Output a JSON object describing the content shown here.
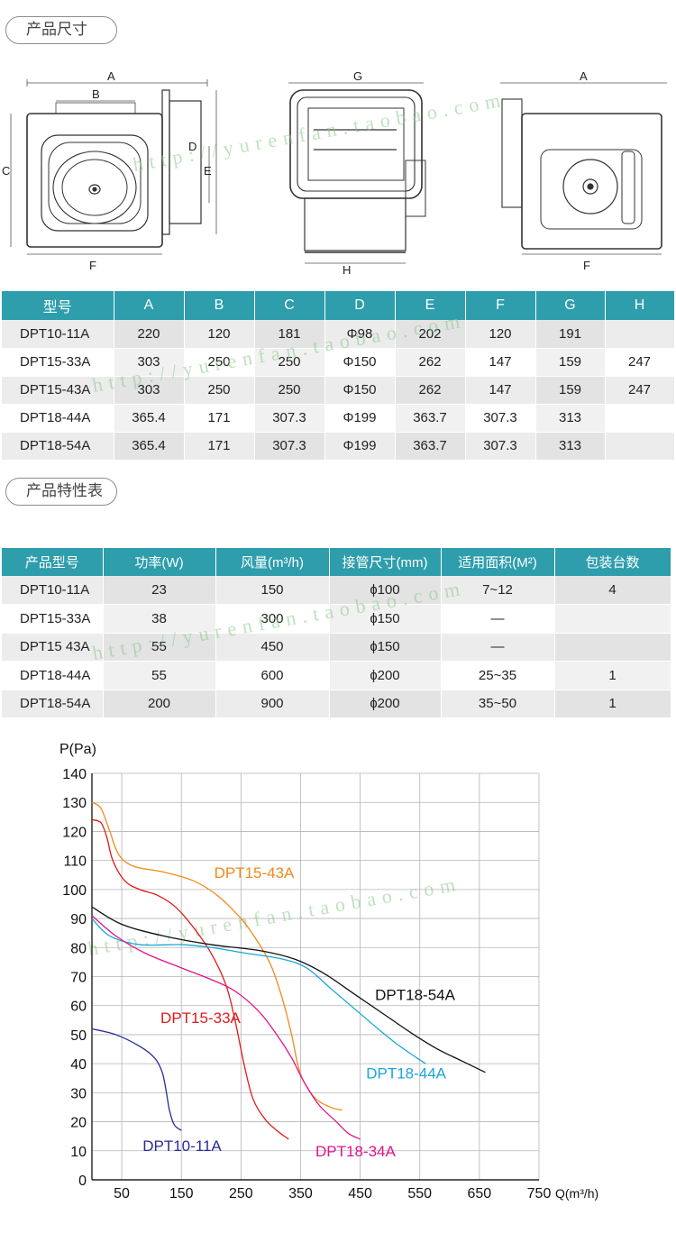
{
  "sections": {
    "size_title": "产品尺寸",
    "props_title": "产品特性表"
  },
  "diagram_labels": {
    "front": {
      "a": "A",
      "b": "B",
      "c": "C",
      "d": "D",
      "e": "E",
      "f": "F"
    },
    "side": {
      "g": "G",
      "h": "H"
    },
    "back": {
      "a": "A",
      "f": "F"
    }
  },
  "dimension_table": {
    "headers": [
      "型号",
      "A",
      "B",
      "C",
      "D",
      "E",
      "F",
      "G",
      "H"
    ],
    "rows": [
      [
        "DPT10-11A",
        "220",
        "120",
        "181",
        "Φ98",
        "202",
        "120",
        "191",
        ""
      ],
      [
        "DPT15-33A",
        "303",
        "250",
        "250",
        "Φ150",
        "262",
        "147",
        "159",
        "247"
      ],
      [
        "DPT15-43A",
        "303",
        "250",
        "250",
        "Φ150",
        "262",
        "147",
        "159",
        "247"
      ],
      [
        "DPT18-44A",
        "365.4",
        "171",
        "307.3",
        "Φ199",
        "363.7",
        "307.3",
        "313",
        ""
      ],
      [
        "DPT18-54A",
        "365.4",
        "171",
        "307.3",
        "Φ199",
        "363.7",
        "307.3",
        "313",
        ""
      ]
    ]
  },
  "property_table": {
    "headers": [
      "产品型号",
      "功率(W)",
      "风量(m³/h)",
      "接管尺寸(mm)",
      "适用面积(M²)",
      "包装台数"
    ],
    "rows": [
      [
        "DPT10-11A",
        "23",
        "150",
        "ɸ100",
        "7~12",
        "4"
      ],
      [
        "DPT15-33A",
        "38",
        "300",
        "ɸ150",
        "—",
        ""
      ],
      [
        "DPT15 43A",
        "55",
        "450",
        "ɸ150",
        "—",
        ""
      ],
      [
        "DPT18-44A",
        "55",
        "600",
        "ɸ200",
        "25~35",
        "1"
      ],
      [
        "DPT18-54A",
        "200",
        "900",
        "ɸ200",
        "35~50",
        "1"
      ]
    ]
  },
  "watermark_text": "http://yurenfan.taobao.com",
  "colors": {
    "header_teal": "#2e9dac",
    "dpt10_11a": "#2a2a9a",
    "dpt15_33a": "#e01a1a",
    "dpt15_43a": "#f08a1a",
    "dpt18_44a": "#1aa6d8",
    "dpt18_34a": "#e0158a",
    "dpt18_54a": "#111111"
  },
  "chart_data": {
    "type": "line",
    "title": "",
    "ylabel": "P(Pa)",
    "xlabel": "Q(m³/h)",
    "xlim": [
      0,
      750
    ],
    "ylim": [
      0,
      140
    ],
    "x_ticks": [
      50,
      150,
      250,
      350,
      450,
      550,
      650,
      750
    ],
    "x_tick_labels": [
      "50",
      "150",
      "250",
      "350",
      "450",
      "550",
      "650",
      "750"
    ],
    "y_ticks": [
      0,
      10,
      20,
      30,
      40,
      50,
      60,
      70,
      80,
      90,
      100,
      110,
      120,
      130,
      140
    ],
    "y_tick_labels": [
      "0",
      "10",
      "20",
      "30",
      "40",
      "50",
      "60",
      "70",
      "80",
      "90",
      "100",
      "110",
      "120",
      "130",
      "140"
    ],
    "series": [
      {
        "name": "DPT10-11A",
        "color": "#2a2a9a",
        "points": [
          [
            0,
            52
          ],
          [
            40,
            50
          ],
          [
            80,
            46
          ],
          [
            105,
            42
          ],
          [
            118,
            37
          ],
          [
            125,
            30
          ],
          [
            130,
            24
          ],
          [
            138,
            19
          ],
          [
            150,
            17
          ]
        ]
      },
      {
        "name": "DPT15-33A",
        "color": "#e01a1a",
        "points": [
          [
            0,
            124
          ],
          [
            15,
            123
          ],
          [
            25,
            118
          ],
          [
            35,
            110
          ],
          [
            55,
            103
          ],
          [
            80,
            100
          ],
          [
            110,
            98
          ],
          [
            140,
            94
          ],
          [
            170,
            87
          ],
          [
            200,
            78
          ],
          [
            225,
            67
          ],
          [
            240,
            55
          ],
          [
            255,
            40
          ],
          [
            270,
            28
          ],
          [
            290,
            21
          ],
          [
            310,
            17
          ],
          [
            330,
            14
          ]
        ]
      },
      {
        "name": "DPT15-43A",
        "color": "#f08a1a",
        "points": [
          [
            0,
            130
          ],
          [
            15,
            128
          ],
          [
            30,
            120
          ],
          [
            45,
            112
          ],
          [
            70,
            108
          ],
          [
            120,
            106
          ],
          [
            170,
            103
          ],
          [
            210,
            98
          ],
          [
            250,
            90
          ],
          [
            275,
            83
          ],
          [
            300,
            74
          ],
          [
            320,
            62
          ],
          [
            335,
            50
          ],
          [
            345,
            40
          ],
          [
            355,
            34
          ],
          [
            375,
            28
          ],
          [
            400,
            25
          ],
          [
            420,
            24
          ]
        ]
      },
      {
        "name": "DPT18-44A",
        "color": "#1aa6d8",
        "points": [
          [
            0,
            90
          ],
          [
            30,
            84
          ],
          [
            80,
            81
          ],
          [
            150,
            81
          ],
          [
            200,
            80
          ],
          [
            260,
            78
          ],
          [
            320,
            76
          ],
          [
            360,
            73
          ],
          [
            400,
            66
          ],
          [
            440,
            59
          ],
          [
            480,
            52
          ],
          [
            510,
            47
          ],
          [
            545,
            42
          ],
          [
            560,
            40
          ]
        ]
      },
      {
        "name": "DPT18-34A",
        "color": "#e0158a",
        "points": [
          [
            0,
            91
          ],
          [
            40,
            84
          ],
          [
            90,
            78
          ],
          [
            150,
            73
          ],
          [
            200,
            69
          ],
          [
            240,
            65
          ],
          [
            280,
            58
          ],
          [
            310,
            50
          ],
          [
            335,
            42
          ],
          [
            355,
            34
          ],
          [
            380,
            26
          ],
          [
            410,
            20
          ],
          [
            430,
            16
          ],
          [
            450,
            14
          ]
        ]
      },
      {
        "name": "DPT18-54A",
        "color": "#111111",
        "points": [
          [
            0,
            94
          ],
          [
            50,
            88
          ],
          [
            120,
            84
          ],
          [
            200,
            81
          ],
          [
            280,
            79
          ],
          [
            340,
            76
          ],
          [
            390,
            71
          ],
          [
            440,
            64
          ],
          [
            490,
            57
          ],
          [
            540,
            50
          ],
          [
            580,
            45
          ],
          [
            620,
            41
          ],
          [
            660,
            37
          ]
        ]
      }
    ],
    "series_labels": [
      {
        "name": "DPT15-43A",
        "x": 205,
        "y": 104
      },
      {
        "name": "DPT18-54A",
        "x": 475,
        "y": 62
      },
      {
        "name": "DPT15-33A",
        "x": 115,
        "y": 54
      },
      {
        "name": "DPT18-44A",
        "x": 460,
        "y": 35
      },
      {
        "name": "DPT10-11A",
        "x": 85,
        "y": 10
      },
      {
        "name": "DPT18-34A",
        "x": 375,
        "y": 8
      }
    ]
  }
}
